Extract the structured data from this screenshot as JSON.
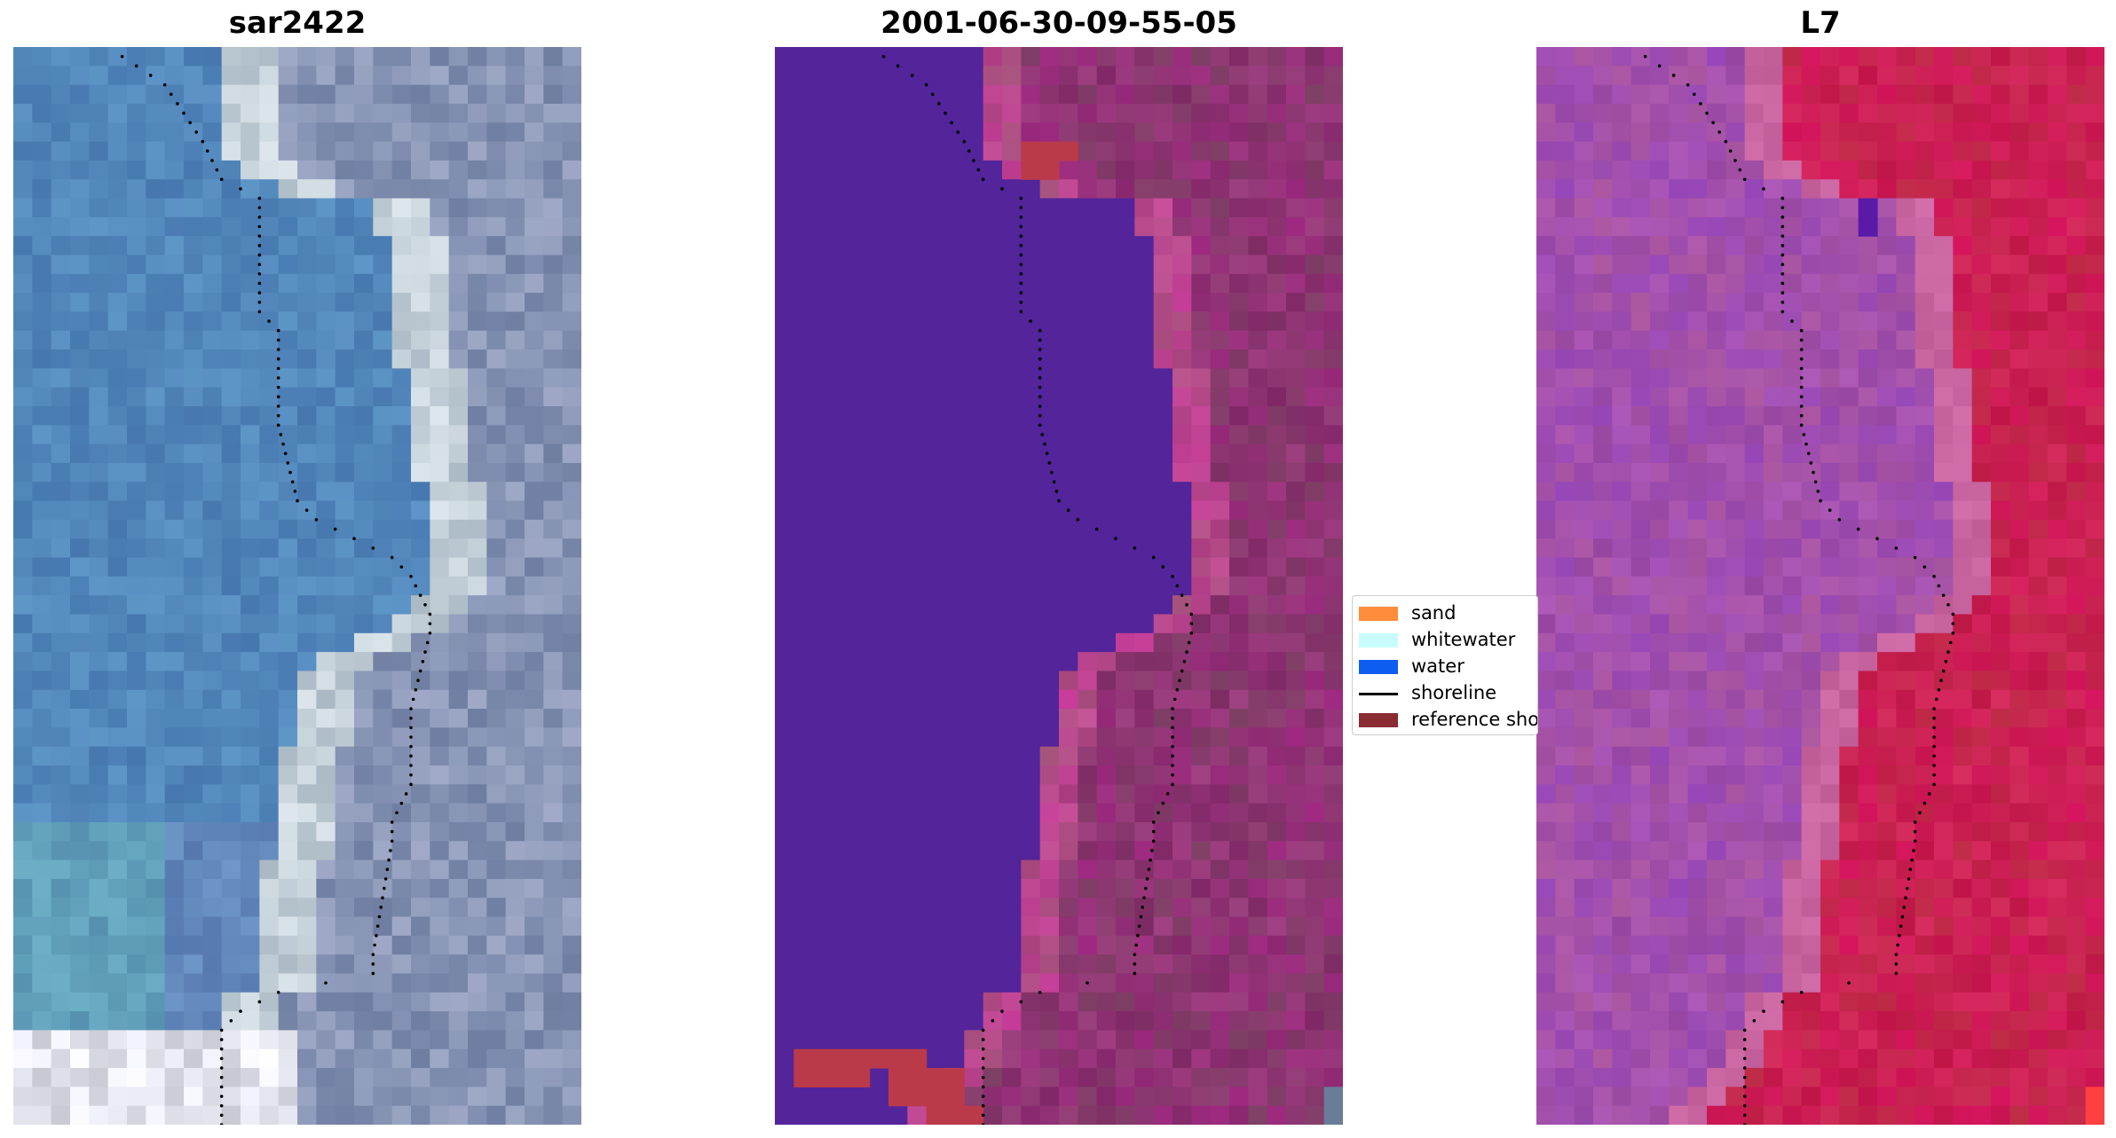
{
  "panels": [
    {
      "title": "sar2422",
      "style": "rgb"
    },
    {
      "title": "2001-06-30-09-55-05",
      "style": "classified"
    },
    {
      "title": "L7",
      "style": "index"
    }
  ],
  "legend": {
    "items": [
      {
        "label": "sand",
        "color": "#ff8c3a",
        "kind": "patch"
      },
      {
        "label": "whitewater",
        "color": "#c8fbfb",
        "kind": "patch"
      },
      {
        "label": "water",
        "color": "#0d5ef0",
        "kind": "patch"
      },
      {
        "label": "shoreline",
        "color": "#000000",
        "kind": "line"
      },
      {
        "label": "reference shoreline",
        "color": "#8b2b34",
        "kind": "patch"
      }
    ]
  },
  "colors": {
    "water_class": "#53249a",
    "sand_overlay": "#ba3a4a",
    "index_water": "#a64fa5",
    "index_land": "#c4174a"
  }
}
